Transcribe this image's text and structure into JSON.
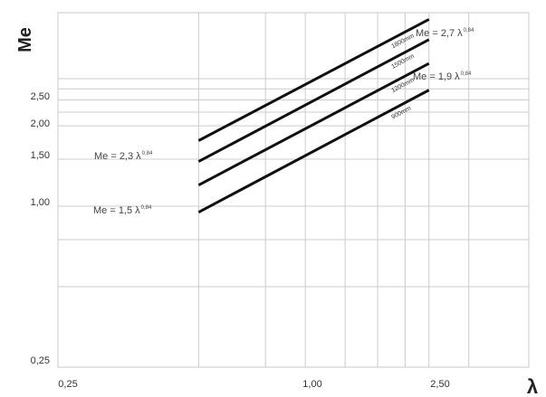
{
  "chart_data": {
    "type": "line",
    "title": "",
    "xlabel": "λ",
    "ylabel": "Me",
    "xscale": "log",
    "yscale": "log",
    "xlim": [
      0.25,
      3.5
    ],
    "ylim": [
      0.25,
      5.3
    ],
    "x_tick_labels": [
      "0,25",
      "1,00",
      "2,50"
    ],
    "y_tick_labels": [
      "0,25",
      "1,00",
      "1,50",
      "2,00",
      "2,50"
    ],
    "grid": true,
    "series": [
      {
        "name": "1800mm",
        "x": [
          0.55,
          2.0
        ],
        "y": [
          1.76,
          5.0
        ]
      },
      {
        "name": "1500mm",
        "x": [
          0.55,
          2.0
        ],
        "y": [
          1.47,
          4.2
        ]
      },
      {
        "name": "1200mm",
        "x": [
          0.55,
          2.0
        ],
        "y": [
          1.2,
          3.42
        ]
      },
      {
        "name": "900mm",
        "x": [
          0.55,
          2.0
        ],
        "y": [
          0.95,
          2.72
        ]
      }
    ],
    "annotations": [
      {
        "text": "Me = 2,7 λ",
        "exponent": "0,84"
      },
      {
        "text": "Me = 1,9 λ",
        "exponent": "0,84"
      },
      {
        "text": "Me = 2,3 λ",
        "exponent": "0,84"
      },
      {
        "text": "Me = 1,5 λ",
        "exponent": "0,84"
      }
    ]
  }
}
